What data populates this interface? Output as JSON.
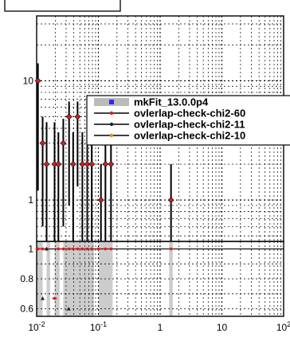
{
  "chart_data": [
    {
      "panel": "top",
      "type": "scatter",
      "x_scale": "log",
      "y_scale": "log",
      "xlim": [
        0.01,
        100
      ],
      "ylim": [
        0.45,
        35
      ],
      "grid": true,
      "y_tick_labels": [
        "1",
        "10"
      ],
      "legend": {
        "placement": "top-right",
        "entries": [
          {
            "label": "mkFit_13.0.0p4",
            "color": "#2a2aff",
            "style": "band"
          },
          {
            "label": "ovlerlap-check-chi2-60",
            "color": "#cc2222",
            "style": "line"
          },
          {
            "label": "ovlerlap-check-chi2-11",
            "color": "#222222",
            "style": "line"
          },
          {
            "label": "ovlerlap-check-chi2-10",
            "color": "#e08a2a",
            "style": "line"
          }
        ]
      },
      "series": [
        {
          "color": "#cc2222",
          "points": [
            {
              "x": 0.0105,
              "y": 10.0,
              "lo": 1.2,
              "hi": 14.0
            },
            {
              "x": 0.0125,
              "y": 3.0,
              "lo": 0.6,
              "hi": 5.0
            },
            {
              "x": 0.0145,
              "y": 2.0,
              "lo": 0.45,
              "hi": 4.5
            },
            {
              "x": 0.0195,
              "y": 2.0,
              "lo": 0.45,
              "hi": 4.5
            },
            {
              "x": 0.0225,
              "y": 2.0,
              "lo": 0.45,
              "hi": 3.7
            },
            {
              "x": 0.027,
              "y": 3.0,
              "lo": 0.6,
              "hi": 4.8
            },
            {
              "x": 0.0335,
              "y": 5.0,
              "lo": 0.9,
              "hi": 6.7
            },
            {
              "x": 0.039,
              "y": 2.0,
              "lo": 0.45,
              "hi": 3.7
            },
            {
              "x": 0.046,
              "y": 5.0,
              "lo": 1.3,
              "hi": 6.7
            },
            {
              "x": 0.055,
              "y": 2.0,
              "lo": 0.45,
              "hi": 3.7
            },
            {
              "x": 0.066,
              "y": 2.0,
              "lo": 0.45,
              "hi": 3.7
            },
            {
              "x": 0.078,
              "y": 2.0,
              "lo": 0.45,
              "hi": 3.7
            },
            {
              "x": 0.11,
              "y": 1.0,
              "lo": 0.45,
              "hi": 2.0
            },
            {
              "x": 0.13,
              "y": 2.0,
              "lo": 0.45,
              "hi": 3.7
            },
            {
              "x": 0.16,
              "y": 2.0,
              "lo": 0.45,
              "hi": 3.7
            },
            {
              "x": 1.5,
              "y": 1.0,
              "lo": 0.45,
              "hi": 2.0
            }
          ]
        }
      ]
    },
    {
      "panel": "bottom-ratio",
      "type": "scatter",
      "x_scale": "log",
      "xlim": [
        0.01,
        100
      ],
      "ylim": [
        0.55,
        1.05
      ],
      "grid": true,
      "x_tick_labels": [
        "10^-2",
        "10^-1",
        "1",
        "10",
        "10^2"
      ],
      "y_tick_labels": [
        "0.6",
        "0.8",
        "1"
      ],
      "band_color": "#cccccc",
      "bands": [
        {
          "x0": 0.01,
          "x1": 0.0125
        },
        {
          "x0": 0.0145,
          "x1": 0.0165
        },
        {
          "x0": 0.0195,
          "x1": 0.0235
        },
        {
          "x0": 0.027,
          "x1": 0.085
        },
        {
          "x0": 0.1,
          "x1": 0.17
        },
        {
          "x0": 1.4,
          "x1": 1.6
        }
      ],
      "series": [
        {
          "color": "#cc2222",
          "points": [
            {
              "x": 0.0105,
              "y": 1.0
            },
            {
              "x": 0.0125,
              "y": 1.0
            },
            {
              "x": 0.0145,
              "y": 1.0
            },
            {
              "x": 0.0195,
              "y": 0.67
            },
            {
              "x": 0.0225,
              "y": 1.0
            },
            {
              "x": 0.027,
              "y": 1.0
            },
            {
              "x": 0.0335,
              "y": 1.0
            },
            {
              "x": 0.039,
              "y": 1.0
            },
            {
              "x": 0.046,
              "y": 1.0
            },
            {
              "x": 0.055,
              "y": 1.0
            },
            {
              "x": 0.066,
              "y": 1.0
            },
            {
              "x": 0.078,
              "y": 1.0
            },
            {
              "x": 0.1,
              "y": 1.0
            },
            {
              "x": 0.13,
              "y": 1.0
            },
            {
              "x": 0.16,
              "y": 1.0
            },
            {
              "x": 1.5,
              "y": 1.0
            }
          ]
        },
        {
          "color": "#222222",
          "points": [
            {
              "x": 0.0125,
              "y": 0.67
            },
            {
              "x": 0.0145,
              "y": 1.0
            },
            {
              "x": 0.033,
              "y": 0.6
            }
          ]
        }
      ]
    }
  ]
}
